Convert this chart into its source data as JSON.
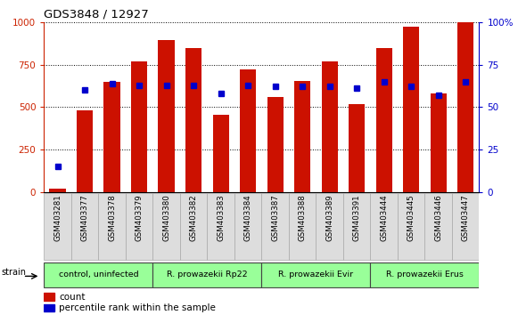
{
  "title": "GDS3848 / 12927",
  "samples": [
    "GSM403281",
    "GSM403377",
    "GSM403378",
    "GSM403379",
    "GSM403380",
    "GSM403382",
    "GSM403383",
    "GSM403384",
    "GSM403387",
    "GSM403388",
    "GSM403389",
    "GSM403391",
    "GSM403444",
    "GSM403445",
    "GSM403446",
    "GSM403447"
  ],
  "counts": [
    20,
    480,
    650,
    770,
    895,
    845,
    455,
    720,
    560,
    655,
    770,
    520,
    845,
    975,
    580,
    1000
  ],
  "percentiles": [
    15,
    60,
    64,
    63,
    63,
    63,
    58,
    63,
    62,
    62,
    62,
    61,
    65,
    62,
    57,
    65
  ],
  "group_spans": [
    {
      "label": "control, uninfected",
      "start": 0,
      "end": 3
    },
    {
      "label": "R. prowazekii Rp22",
      "start": 4,
      "end": 7
    },
    {
      "label": "R. prowazekii Evir",
      "start": 8,
      "end": 11
    },
    {
      "label": "R. prowazekii Erus",
      "start": 12,
      "end": 15
    }
  ],
  "group_color": "#99ff99",
  "group_edge_color": "#444444",
  "bar_color": "#cc1100",
  "dot_color": "#0000cc",
  "left_axis_color": "#cc2200",
  "right_axis_color": "#0000cc",
  "ylim_left": [
    0,
    1000
  ],
  "ylim_right": [
    0,
    100
  ],
  "yticks_left": [
    0,
    250,
    500,
    750,
    1000
  ],
  "yticks_right": [
    0,
    25,
    50,
    75,
    100
  ],
  "bg_color": "#ffffff",
  "grid_color": "#000000",
  "bar_width": 0.6,
  "tick_label_bg": "#dddddd"
}
